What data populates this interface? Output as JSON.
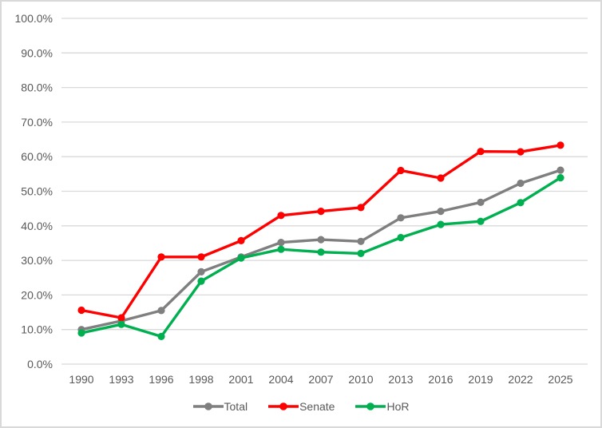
{
  "chart_data": {
    "type": "line",
    "title": "",
    "xlabel": "",
    "ylabel": "",
    "categories": [
      "1990",
      "1993",
      "1996",
      "1998",
      "2001",
      "2004",
      "2007",
      "2010",
      "2013",
      "2016",
      "2019",
      "2022",
      "2025"
    ],
    "series": [
      {
        "name": "Total",
        "color": "#7F7F7F",
        "values": [
          10.0,
          12.5,
          15.5,
          26.7,
          31.0,
          35.2,
          36.0,
          35.5,
          42.3,
          44.2,
          46.8,
          52.3,
          56.1
        ]
      },
      {
        "name": "Senate",
        "color": "#FF0000",
        "values": [
          15.6,
          13.4,
          31.0,
          31.0,
          35.7,
          43.0,
          44.2,
          45.3,
          56.0,
          53.8,
          61.5,
          61.4,
          63.3
        ]
      },
      {
        "name": "HoR",
        "color": "#00B050",
        "values": [
          9.0,
          11.5,
          8.0,
          24.0,
          30.7,
          33.2,
          32.4,
          32.0,
          36.6,
          40.4,
          41.3,
          46.7,
          53.9
        ]
      }
    ],
    "ylim": [
      0,
      100
    ],
    "yticks": [
      {
        "value": 0,
        "label": "0.0%"
      },
      {
        "value": 10,
        "label": "10.0%"
      },
      {
        "value": 20,
        "label": "20.0%"
      },
      {
        "value": 30,
        "label": "30.0%"
      },
      {
        "value": 40,
        "label": "40.0%"
      },
      {
        "value": 50,
        "label": "50.0%"
      },
      {
        "value": 60,
        "label": "60.0%"
      },
      {
        "value": 70,
        "label": "70.0%"
      },
      {
        "value": 80,
        "label": "80.0%"
      },
      {
        "value": 90,
        "label": "90.0%"
      },
      {
        "value": 100,
        "label": "100.0%"
      }
    ],
    "grid": true,
    "legend_position": "bottom",
    "marker": "circle",
    "colors": {
      "axis_text": "#595959",
      "gridline": "#D9D9D9",
      "background": "#FFFFFF",
      "frame_border": "#D9D9D9"
    }
  }
}
